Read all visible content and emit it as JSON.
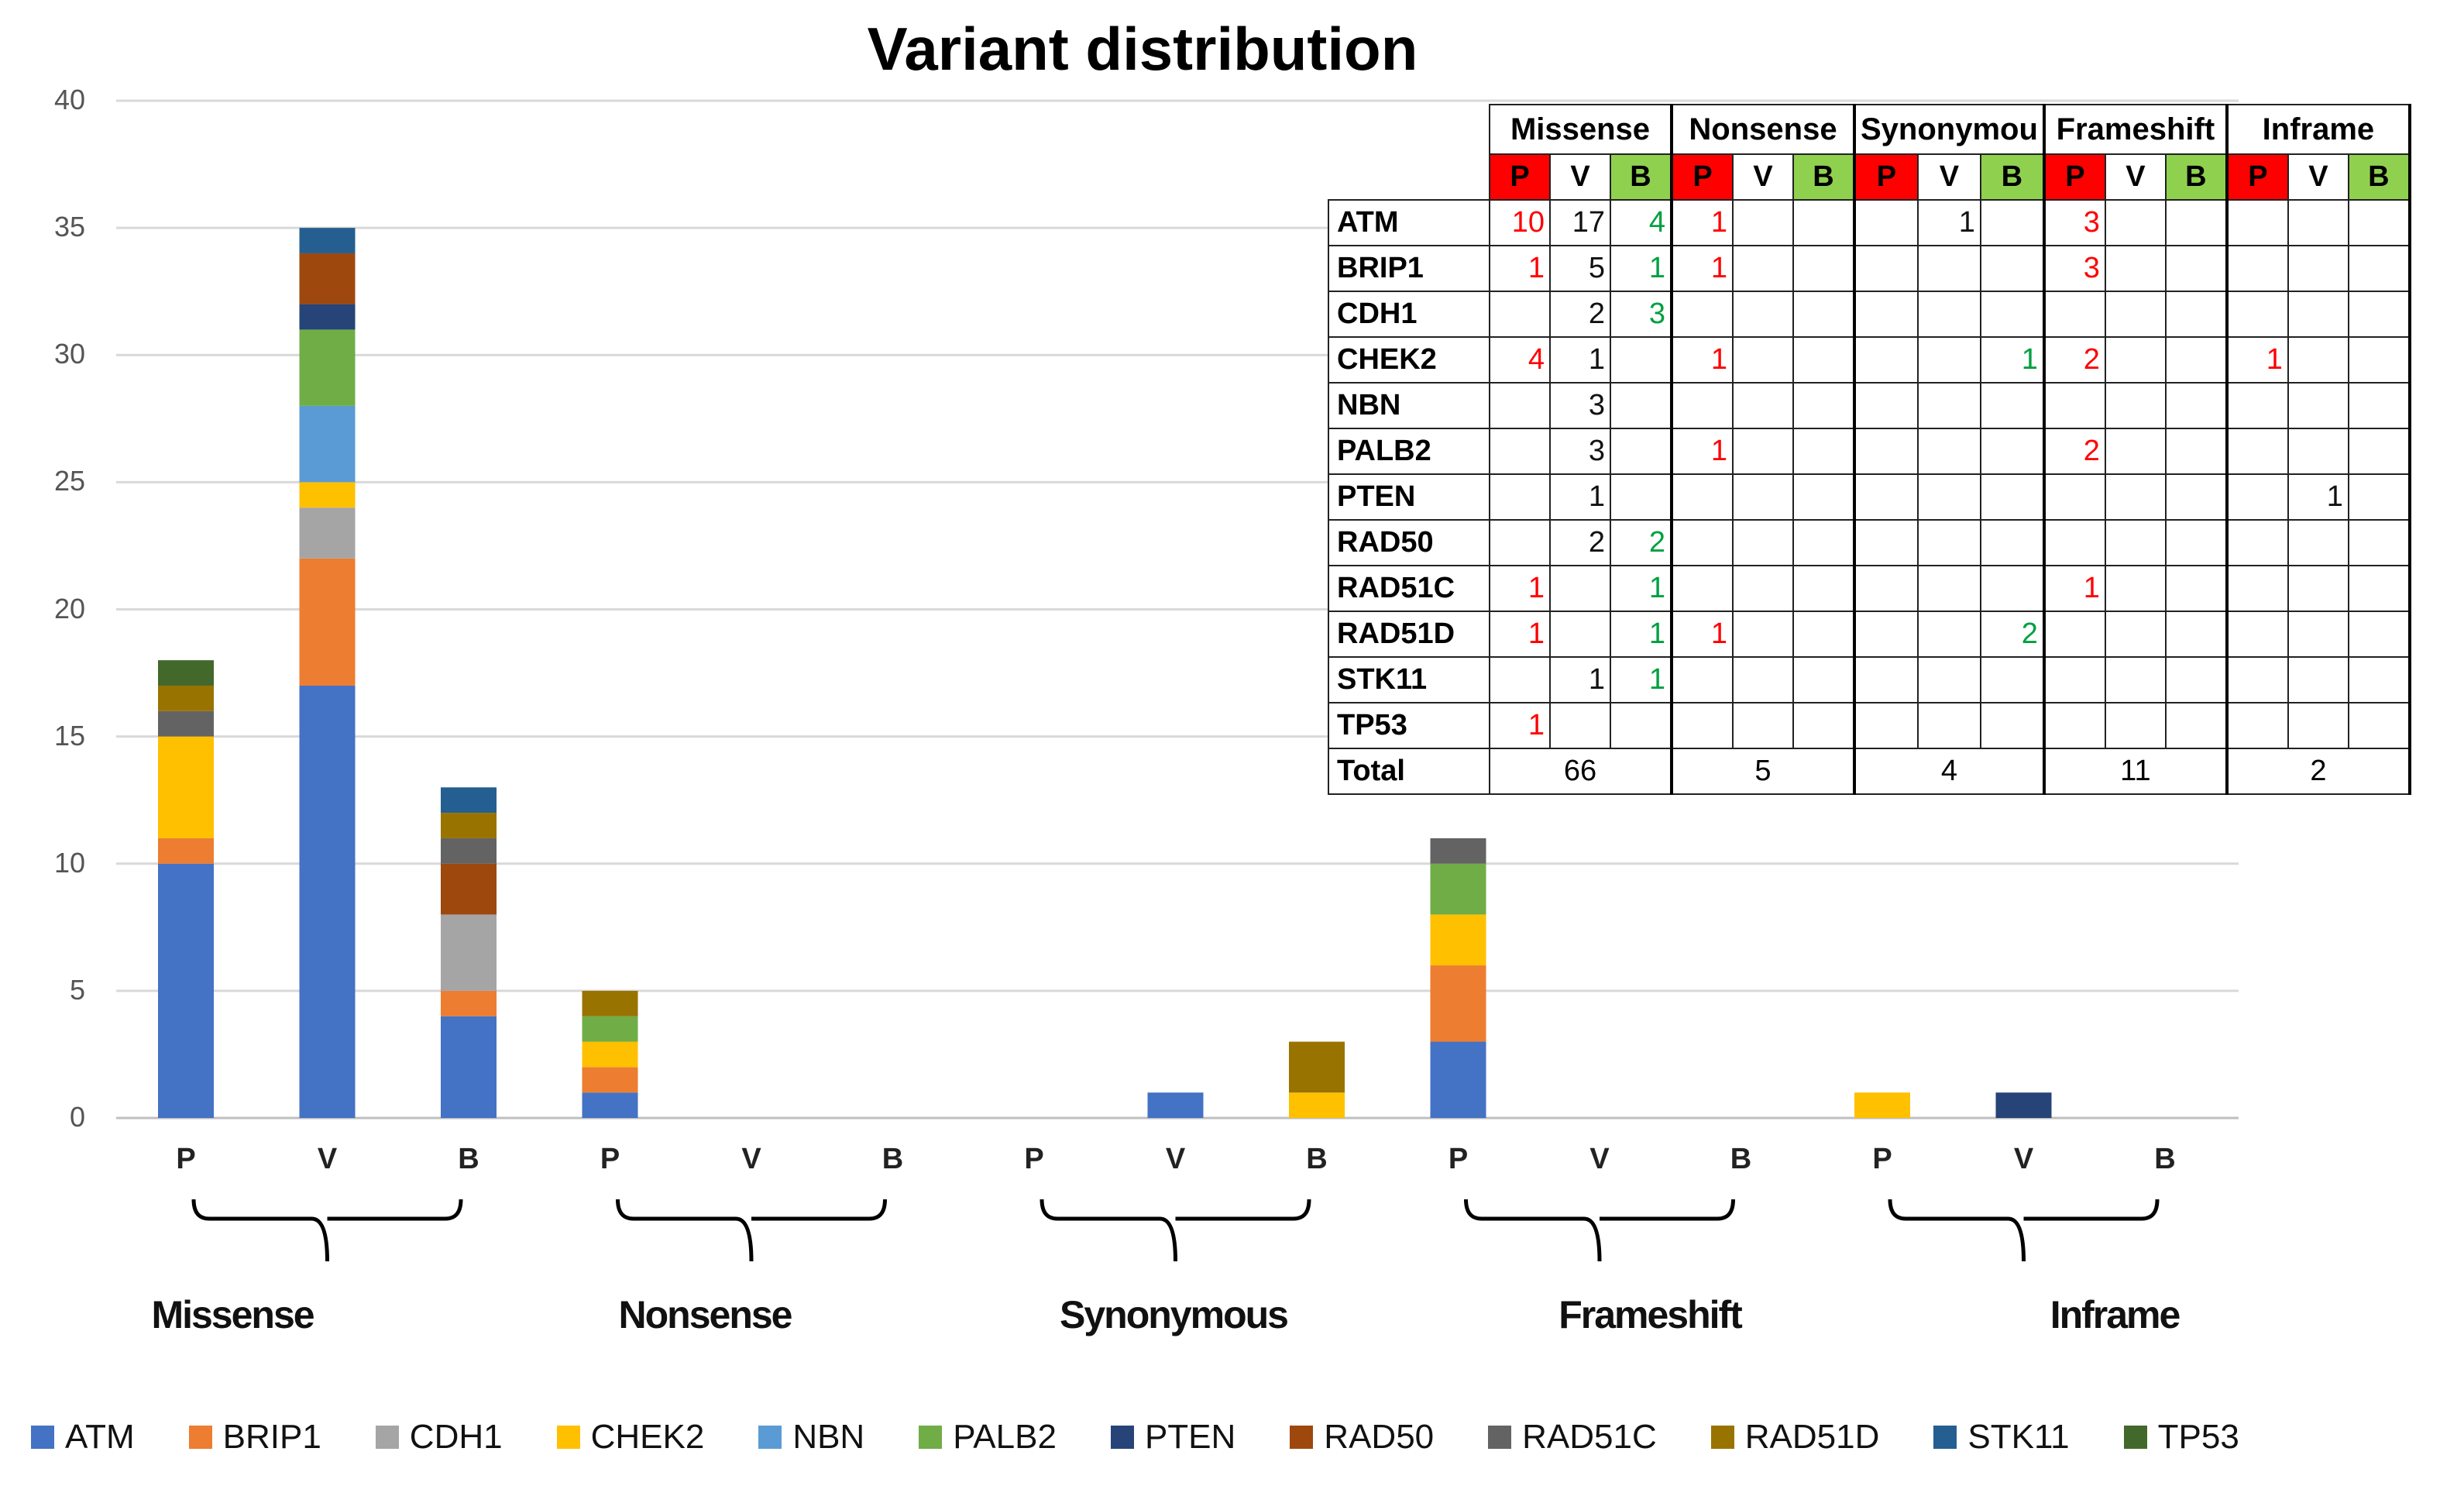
{
  "chart_data": {
    "type": "bar",
    "stacked": true,
    "title": "Variant distribution",
    "ylim": [
      0,
      40
    ],
    "yticks": [
      0,
      5,
      10,
      15,
      20,
      25,
      30,
      35,
      40
    ],
    "categories": [
      "P",
      "V",
      "B",
      "P",
      "V",
      "B",
      "P",
      "V",
      "B",
      "P",
      "V",
      "B",
      "P",
      "V",
      "B"
    ],
    "groups": [
      "Missense",
      "Nonsense",
      "Synonymous",
      "Frameshift",
      "Inframe"
    ],
    "series": [
      {
        "name": "ATM",
        "color": "#4472C4",
        "values": [
          10,
          17,
          4,
          1,
          0,
          0,
          0,
          1,
          0,
          3,
          0,
          0,
          0,
          0,
          0
        ]
      },
      {
        "name": "BRIP1",
        "color": "#ED7D31",
        "values": [
          1,
          5,
          1,
          1,
          0,
          0,
          0,
          0,
          0,
          3,
          0,
          0,
          0,
          0,
          0
        ]
      },
      {
        "name": "CDH1",
        "color": "#A5A5A5",
        "values": [
          0,
          2,
          3,
          0,
          0,
          0,
          0,
          0,
          0,
          0,
          0,
          0,
          0,
          0,
          0
        ]
      },
      {
        "name": "CHEK2",
        "color": "#FFC000",
        "values": [
          4,
          1,
          0,
          1,
          0,
          0,
          0,
          0,
          1,
          2,
          0,
          0,
          1,
          0,
          0
        ]
      },
      {
        "name": "NBN",
        "color": "#5B9BD5",
        "values": [
          0,
          3,
          0,
          0,
          0,
          0,
          0,
          0,
          0,
          0,
          0,
          0,
          0,
          0,
          0
        ]
      },
      {
        "name": "PALB2",
        "color": "#70AD47",
        "values": [
          0,
          3,
          0,
          1,
          0,
          0,
          0,
          0,
          0,
          2,
          0,
          0,
          0,
          0,
          0
        ]
      },
      {
        "name": "PTEN",
        "color": "#264478",
        "values": [
          0,
          1,
          0,
          0,
          0,
          0,
          0,
          0,
          0,
          0,
          0,
          0,
          0,
          1,
          0
        ]
      },
      {
        "name": "RAD50",
        "color": "#9E480E",
        "values": [
          0,
          2,
          2,
          0,
          0,
          0,
          0,
          0,
          0,
          0,
          0,
          0,
          0,
          0,
          0
        ]
      },
      {
        "name": "RAD51C",
        "color": "#636363",
        "values": [
          1,
          0,
          1,
          0,
          0,
          0,
          0,
          0,
          0,
          1,
          0,
          0,
          0,
          0,
          0
        ]
      },
      {
        "name": "RAD51D",
        "color": "#997300",
        "values": [
          1,
          0,
          1,
          1,
          0,
          0,
          0,
          0,
          2,
          0,
          0,
          0,
          0,
          0,
          0
        ]
      },
      {
        "name": "STK11",
        "color": "#255E91",
        "values": [
          0,
          1,
          1,
          0,
          0,
          0,
          0,
          0,
          0,
          0,
          0,
          0,
          0,
          0,
          0
        ]
      },
      {
        "name": "TP53",
        "color": "#43682B",
        "values": [
          1,
          0,
          0,
          0,
          0,
          0,
          0,
          0,
          0,
          0,
          0,
          0,
          0,
          0,
          0
        ]
      }
    ],
    "legend_position": "bottom",
    "grid": true
  },
  "table": {
    "groups": [
      "Missense",
      "Nonsense",
      "Synonymou",
      "Frameshift",
      "Inframe"
    ],
    "classes": [
      "P",
      "V",
      "B"
    ],
    "rows": [
      {
        "gene": "ATM",
        "cells": [
          "10",
          "17",
          "4",
          "1",
          "",
          "",
          "",
          "1",
          "",
          "3",
          "",
          "",
          "",
          "",
          ""
        ]
      },
      {
        "gene": "BRIP1",
        "cells": [
          "1",
          "5",
          "1",
          "1",
          "",
          "",
          "",
          "",
          "",
          "3",
          "",
          "",
          "",
          "",
          ""
        ]
      },
      {
        "gene": "CDH1",
        "cells": [
          "",
          "2",
          "3",
          "",
          "",
          "",
          "",
          "",
          "",
          "",
          "",
          "",
          "",
          "",
          ""
        ]
      },
      {
        "gene": "CHEK2",
        "cells": [
          "4",
          "1",
          "",
          "1",
          "",
          "",
          "",
          "",
          "1",
          "2",
          "",
          "",
          "1",
          "",
          ""
        ]
      },
      {
        "gene": "NBN",
        "cells": [
          "",
          "3",
          "",
          "",
          "",
          "",
          "",
          "",
          "",
          "",
          "",
          "",
          "",
          "",
          ""
        ]
      },
      {
        "gene": "PALB2",
        "cells": [
          "",
          "3",
          "",
          "1",
          "",
          "",
          "",
          "",
          "",
          "2",
          "",
          "",
          "",
          "",
          ""
        ]
      },
      {
        "gene": "PTEN",
        "cells": [
          "",
          "1",
          "",
          "",
          "",
          "",
          "",
          "",
          "",
          "",
          "",
          "",
          "",
          "1",
          ""
        ]
      },
      {
        "gene": "RAD50",
        "cells": [
          "",
          "2",
          "2",
          "",
          "",
          "",
          "",
          "",
          "",
          "",
          "",
          "",
          "",
          "",
          ""
        ]
      },
      {
        "gene": "RAD51C",
        "cells": [
          "1",
          "",
          "1",
          "",
          "",
          "",
          "",
          "",
          "",
          "1",
          "",
          "",
          "",
          "",
          ""
        ]
      },
      {
        "gene": "RAD51D",
        "cells": [
          "1",
          "",
          "1",
          "1",
          "",
          "",
          "",
          "",
          "2",
          "",
          "",
          "",
          "",
          "",
          ""
        ]
      },
      {
        "gene": "STK11",
        "cells": [
          "",
          "1",
          "1",
          "",
          "",
          "",
          "",
          "",
          "",
          "",
          "",
          "",
          "",
          "",
          ""
        ]
      },
      {
        "gene": "TP53",
        "cells": [
          "1",
          "",
          "",
          "",
          "",
          "",
          "",
          "",
          "",
          "",
          "",
          "",
          "",
          "",
          ""
        ]
      }
    ],
    "total_label": "Total",
    "totals": [
      "66",
      "5",
      "4",
      "11",
      "2"
    ],
    "colors": {
      "P": "#ff0000",
      "V": "#111111",
      "B": "#00a040"
    }
  }
}
